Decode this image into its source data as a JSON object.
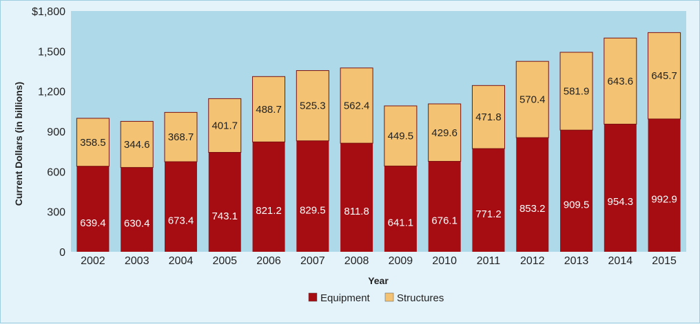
{
  "chart_data": {
    "type": "bar",
    "stacked": true,
    "categories": [
      "2002",
      "2003",
      "2004",
      "2005",
      "2006",
      "2007",
      "2008",
      "2009",
      "2010",
      "2011",
      "2012",
      "2013",
      "2014",
      "2015"
    ],
    "series": [
      {
        "name": "Equipment",
        "color": "#a50d12",
        "label_color": "#ffffff",
        "values": [
          639.4,
          630.4,
          673.4,
          743.1,
          821.2,
          829.5,
          811.8,
          641.1,
          676.1,
          771.2,
          853.2,
          909.5,
          954.3,
          992.9
        ]
      },
      {
        "name": "Structures",
        "color": "#f3c272",
        "label_color": "#222222",
        "values": [
          358.5,
          344.6,
          368.7,
          401.7,
          488.7,
          525.3,
          562.4,
          449.5,
          429.6,
          471.8,
          570.4,
          581.9,
          643.6,
          645.7
        ]
      }
    ],
    "xlabel": "Year",
    "ylabel": "Current Dollars (in billions)",
    "ylim": [
      0,
      1800
    ],
    "yticks": [
      0,
      300,
      600,
      900,
      1200,
      1500,
      1800
    ],
    "ytick_labels": [
      "0",
      "300",
      "600",
      "900",
      "1,200",
      "1,500",
      "$1,800"
    ],
    "plot_background": "#add9e8",
    "grid": false,
    "legend": "bottom-center"
  }
}
